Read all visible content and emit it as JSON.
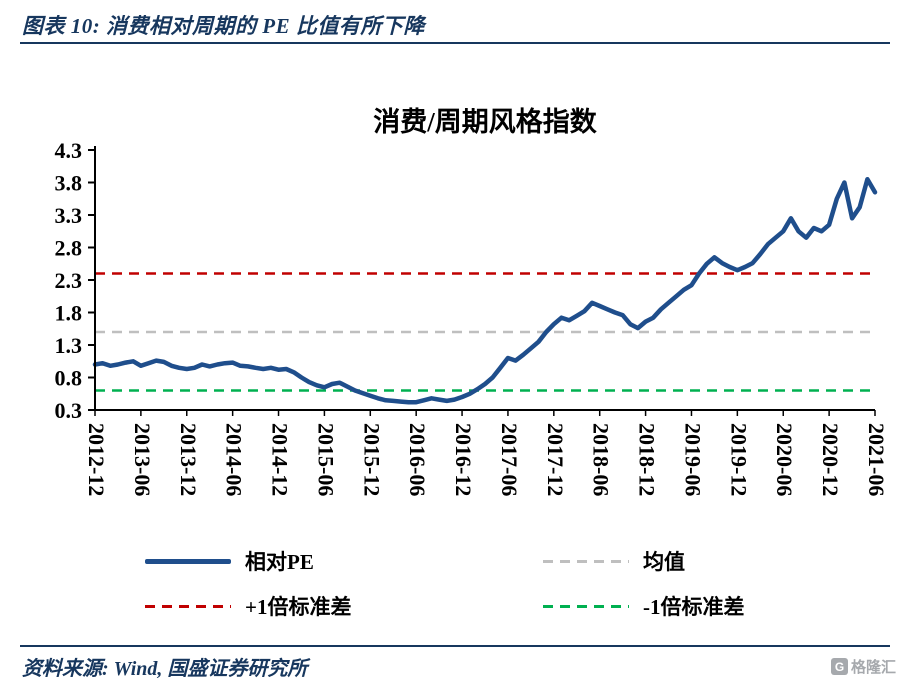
{
  "colors": {
    "accent_navy": "#17375E",
    "axis_black": "#000000"
  },
  "header": {
    "title": "图表 10:  消费相对周期的 PE 比值有所下降"
  },
  "chart_data": {
    "type": "line",
    "title": "消费/周期风格指数",
    "ylim": [
      0.3,
      4.3
    ],
    "yticks": [
      0.3,
      0.8,
      1.3,
      1.8,
      2.3,
      2.8,
      3.3,
      3.8,
      4.3
    ],
    "x_frequency": "monthly",
    "x_range": [
      "2012-12",
      "2021-06"
    ],
    "xtick_labels": [
      "2012-12",
      "2013-06",
      "2013-12",
      "2014-06",
      "2014-12",
      "2015-06",
      "2015-12",
      "2016-06",
      "2016-12",
      "2017-06",
      "2017-12",
      "2018-06",
      "2018-12",
      "2019-06",
      "2019-12",
      "2020-06",
      "2020-12",
      "2021-06"
    ],
    "grid": false,
    "series": [
      {
        "name": "相对PE",
        "color": "#1F4E8C",
        "values": [
          1.0,
          1.02,
          0.98,
          1.0,
          1.03,
          1.05,
          0.98,
          1.02,
          1.06,
          1.04,
          0.98,
          0.95,
          0.93,
          0.95,
          1.0,
          0.97,
          1.0,
          1.02,
          1.03,
          0.98,
          0.97,
          0.95,
          0.93,
          0.95,
          0.92,
          0.93,
          0.88,
          0.8,
          0.73,
          0.68,
          0.65,
          0.7,
          0.72,
          0.66,
          0.6,
          0.56,
          0.52,
          0.48,
          0.45,
          0.44,
          0.43,
          0.42,
          0.42,
          0.45,
          0.48,
          0.46,
          0.44,
          0.46,
          0.5,
          0.55,
          0.62,
          0.7,
          0.8,
          0.95,
          1.1,
          1.06,
          1.15,
          1.25,
          1.35,
          1.5,
          1.62,
          1.72,
          1.68,
          1.75,
          1.82,
          1.95,
          1.9,
          1.85,
          1.8,
          1.76,
          1.62,
          1.56,
          1.66,
          1.72,
          1.85,
          1.95,
          2.05,
          2.15,
          2.22,
          2.4,
          2.55,
          2.65,
          2.56,
          2.5,
          2.45,
          2.5,
          2.56,
          2.7,
          2.85,
          2.95,
          3.05,
          3.25,
          3.05,
          2.95,
          3.1,
          3.05,
          3.15,
          3.55,
          3.8,
          3.25,
          3.42,
          3.85,
          3.65
        ]
      }
    ],
    "reference_lines": [
      {
        "name": "均值",
        "value": 1.5,
        "color": "#BFBFBF",
        "style": "dashed"
      },
      {
        "name": "+1倍标准差",
        "value": 2.4,
        "color": "#C00000",
        "style": "dashed"
      },
      {
        "name": "-1倍标准差",
        "value": 0.6,
        "color": "#00B050",
        "style": "dashed"
      }
    ],
    "legend": [
      {
        "label": "相对PE",
        "color": "#1F4E8C",
        "dash": false
      },
      {
        "label": "均值",
        "color": "#BFBFBF",
        "dash": true
      },
      {
        "label": "+1倍标准差",
        "color": "#C00000",
        "dash": true
      },
      {
        "label": "-1倍标准差",
        "color": "#00B050",
        "dash": true
      }
    ],
    "legend_position": "bottom"
  },
  "footer": {
    "source": "资料来源:  Wind,  国盛证券研究所",
    "logo_mark": "G",
    "logo_text": "格隆汇"
  }
}
